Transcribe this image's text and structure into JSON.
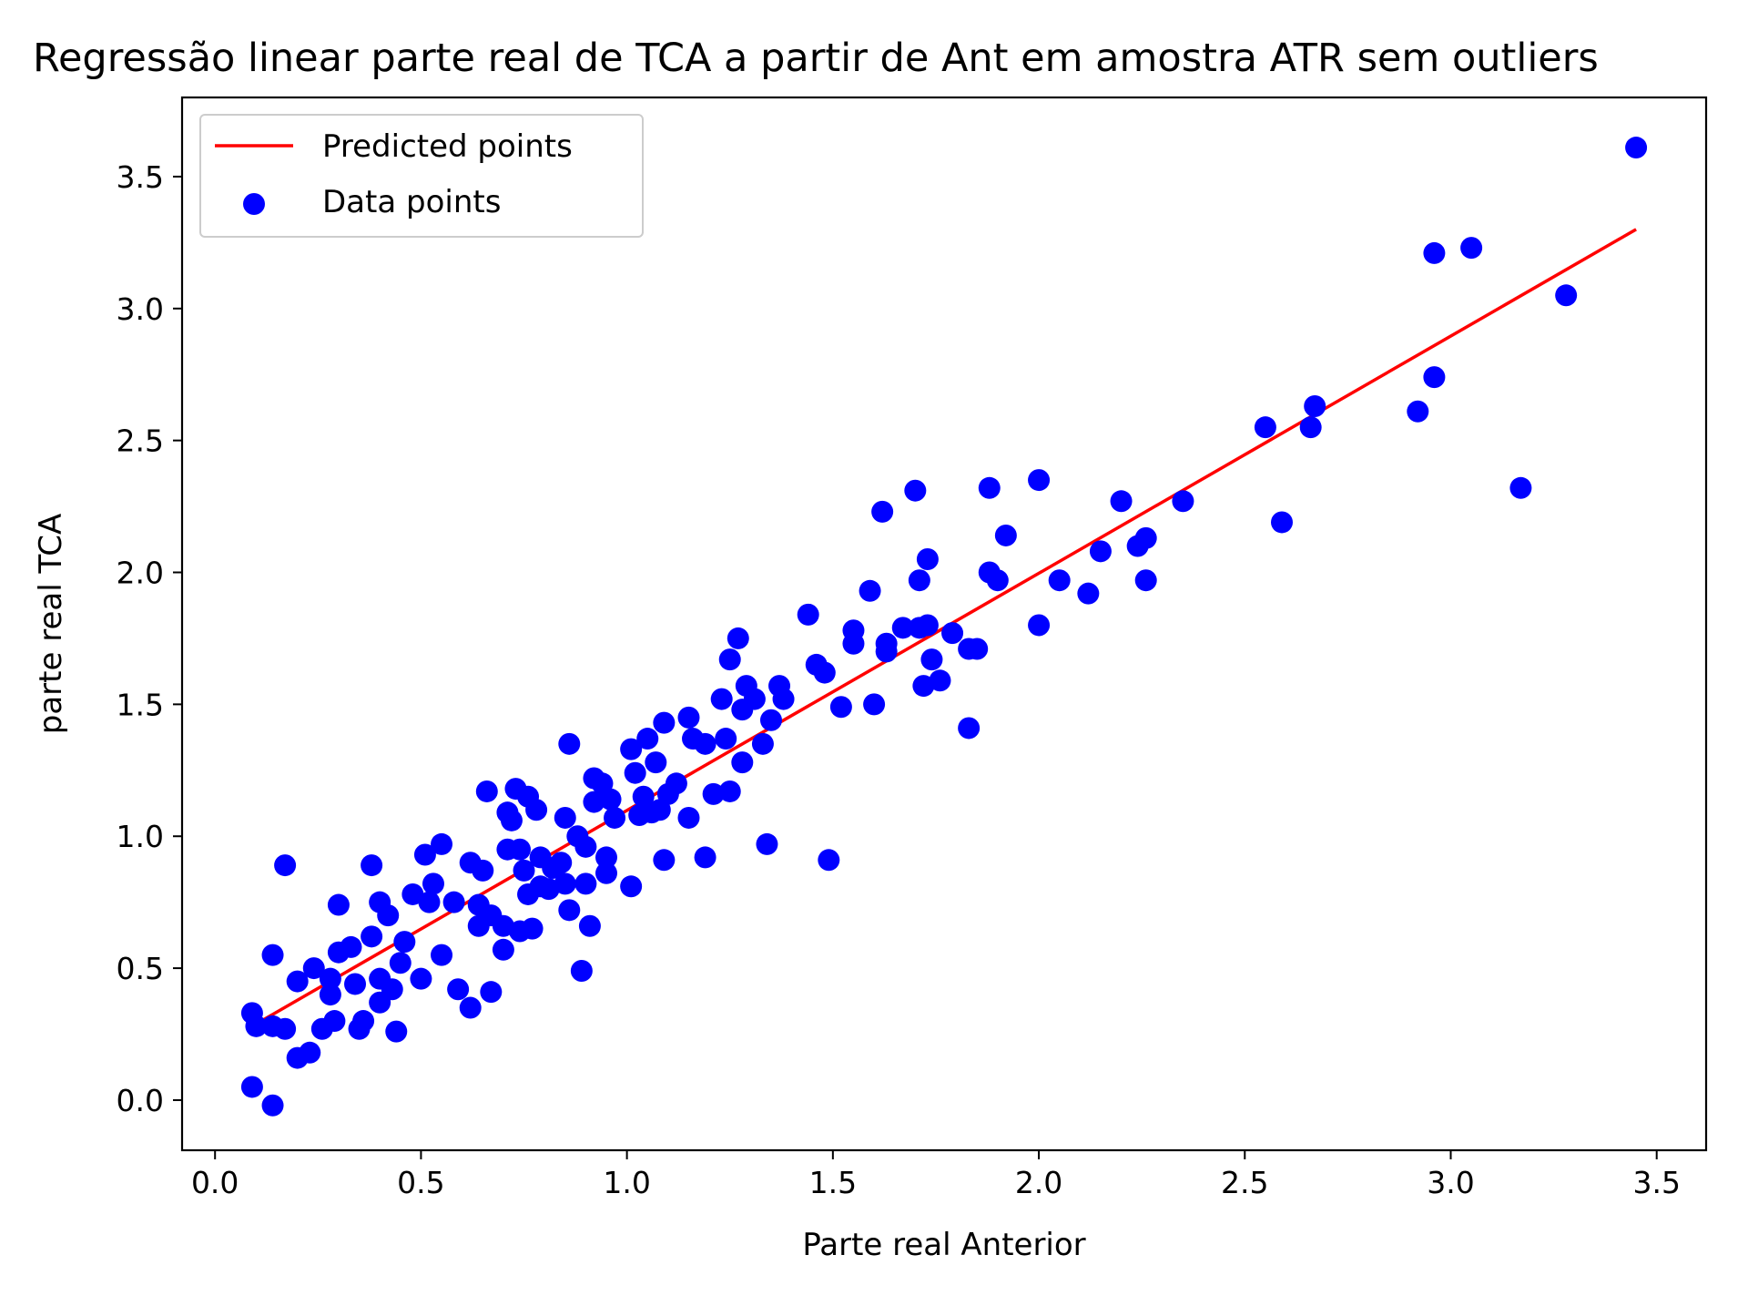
{
  "chart_data": {
    "type": "scatter",
    "title": "Regressão linear parte real de TCA a partir de Ant em amostra ATR sem outliers",
    "xlabel": "Parte real Anterior",
    "ylabel": "parte real TCA",
    "xlim": [
      -0.08,
      3.62
    ],
    "ylim": [
      -0.19,
      3.8
    ],
    "xticks": [
      0.0,
      0.5,
      1.0,
      1.5,
      2.0,
      2.5,
      3.0,
      3.5
    ],
    "xtick_labels": [
      "0.0",
      "0.5",
      "1.0",
      "1.5",
      "2.0",
      "2.5",
      "3.0",
      "3.5"
    ],
    "yticks": [
      0.0,
      0.5,
      1.0,
      1.5,
      2.0,
      2.5,
      3.0,
      3.5
    ],
    "ytick_labels": [
      "0.0",
      "0.5",
      "1.0",
      "1.5",
      "2.0",
      "2.5",
      "3.0",
      "3.5"
    ],
    "grid": false,
    "legend": {
      "position": "top-left",
      "entries": [
        "Predicted points",
        "Data points"
      ]
    },
    "series": [
      {
        "name": "Predicted points",
        "kind": "line",
        "color": "#ff0000",
        "x": [
          0.09,
          3.45
        ],
        "y": [
          0.28,
          3.3
        ]
      },
      {
        "name": "Data points",
        "kind": "scatter",
        "color": "#0000ff",
        "points": [
          [
            0.09,
            0.05
          ],
          [
            0.14,
            -0.02
          ],
          [
            0.09,
            0.33
          ],
          [
            0.1,
            0.28
          ],
          [
            0.14,
            0.28
          ],
          [
            0.17,
            0.27
          ],
          [
            0.14,
            0.55
          ],
          [
            0.17,
            0.89
          ],
          [
            0.2,
            0.16
          ],
          [
            0.23,
            0.18
          ],
          [
            0.2,
            0.45
          ],
          [
            0.24,
            0.5
          ],
          [
            0.26,
            0.27
          ],
          [
            0.28,
            0.46
          ],
          [
            0.28,
            0.4
          ],
          [
            0.29,
            0.3
          ],
          [
            0.3,
            0.56
          ],
          [
            0.3,
            0.74
          ],
          [
            0.33,
            0.58
          ],
          [
            0.34,
            0.44
          ],
          [
            0.35,
            0.27
          ],
          [
            0.36,
            0.3
          ],
          [
            0.38,
            0.62
          ],
          [
            0.38,
            0.89
          ],
          [
            0.4,
            0.46
          ],
          [
            0.4,
            0.37
          ],
          [
            0.4,
            0.75
          ],
          [
            0.42,
            0.7
          ],
          [
            0.43,
            0.42
          ],
          [
            0.44,
            0.26
          ],
          [
            0.45,
            0.52
          ],
          [
            0.46,
            0.6
          ],
          [
            0.48,
            0.78
          ],
          [
            0.5,
            0.46
          ],
          [
            0.51,
            0.93
          ],
          [
            0.52,
            0.75
          ],
          [
            0.53,
            0.82
          ],
          [
            0.55,
            0.97
          ],
          [
            0.55,
            0.55
          ],
          [
            0.58,
            0.75
          ],
          [
            0.59,
            0.42
          ],
          [
            0.62,
            0.35
          ],
          [
            0.62,
            0.9
          ],
          [
            0.64,
            0.66
          ],
          [
            0.64,
            0.74
          ],
          [
            0.65,
            0.87
          ],
          [
            0.66,
            1.17
          ],
          [
            0.67,
            0.41
          ],
          [
            0.67,
            0.7
          ],
          [
            0.7,
            0.66
          ],
          [
            0.7,
            0.57
          ],
          [
            0.71,
            0.95
          ],
          [
            0.71,
            1.09
          ],
          [
            0.72,
            1.06
          ],
          [
            0.73,
            1.18
          ],
          [
            0.74,
            0.95
          ],
          [
            0.74,
            0.64
          ],
          [
            0.75,
            0.87
          ],
          [
            0.76,
            1.15
          ],
          [
            0.76,
            0.78
          ],
          [
            0.77,
            0.65
          ],
          [
            0.78,
            1.1
          ],
          [
            0.79,
            0.81
          ],
          [
            0.79,
            0.92
          ],
          [
            0.81,
            0.8
          ],
          [
            0.82,
            0.88
          ],
          [
            0.84,
            0.9
          ],
          [
            0.85,
            0.82
          ],
          [
            0.85,
            1.07
          ],
          [
            0.86,
            0.72
          ],
          [
            0.86,
            1.35
          ],
          [
            0.88,
            1.0
          ],
          [
            0.89,
            0.49
          ],
          [
            0.9,
            0.96
          ],
          [
            0.9,
            0.82
          ],
          [
            0.91,
            0.66
          ],
          [
            0.92,
            1.13
          ],
          [
            0.92,
            1.22
          ],
          [
            0.94,
            1.2
          ],
          [
            0.95,
            0.92
          ],
          [
            0.95,
            0.86
          ],
          [
            0.96,
            1.14
          ],
          [
            0.97,
            1.07
          ],
          [
            1.01,
            1.33
          ],
          [
            1.01,
            0.81
          ],
          [
            1.02,
            1.24
          ],
          [
            1.03,
            1.08
          ],
          [
            1.04,
            1.15
          ],
          [
            1.05,
            1.37
          ],
          [
            1.06,
            1.09
          ],
          [
            1.07,
            1.28
          ],
          [
            1.08,
            1.1
          ],
          [
            1.09,
            1.43
          ],
          [
            1.09,
            0.91
          ],
          [
            1.1,
            1.16
          ],
          [
            1.12,
            1.2
          ],
          [
            1.15,
            1.07
          ],
          [
            1.15,
            1.45
          ],
          [
            1.16,
            1.37
          ],
          [
            1.19,
            1.35
          ],
          [
            1.19,
            0.92
          ],
          [
            1.21,
            1.16
          ],
          [
            1.23,
            1.52
          ],
          [
            1.24,
            1.37
          ],
          [
            1.25,
            1.17
          ],
          [
            1.25,
            1.67
          ],
          [
            1.27,
            1.75
          ],
          [
            1.28,
            1.28
          ],
          [
            1.28,
            1.48
          ],
          [
            1.29,
            1.57
          ],
          [
            1.31,
            1.52
          ],
          [
            1.33,
            1.35
          ],
          [
            1.34,
            0.97
          ],
          [
            1.35,
            1.44
          ],
          [
            1.37,
            1.57
          ],
          [
            1.38,
            1.52
          ],
          [
            1.44,
            1.84
          ],
          [
            1.46,
            1.65
          ],
          [
            1.48,
            1.62
          ],
          [
            1.49,
            0.91
          ],
          [
            1.52,
            1.49
          ],
          [
            1.55,
            1.78
          ],
          [
            1.55,
            1.73
          ],
          [
            1.59,
            1.93
          ],
          [
            1.6,
            1.5
          ],
          [
            1.62,
            2.23
          ],
          [
            1.63,
            1.7
          ],
          [
            1.63,
            1.73
          ],
          [
            1.67,
            1.79
          ],
          [
            1.7,
            2.31
          ],
          [
            1.71,
            1.97
          ],
          [
            1.71,
            1.79
          ],
          [
            1.72,
            1.57
          ],
          [
            1.73,
            2.05
          ],
          [
            1.73,
            1.8
          ],
          [
            1.74,
            1.67
          ],
          [
            1.76,
            1.59
          ],
          [
            1.79,
            1.77
          ],
          [
            1.83,
            1.41
          ],
          [
            1.83,
            1.71
          ],
          [
            1.85,
            1.71
          ],
          [
            1.88,
            2.32
          ],
          [
            1.88,
            2.0
          ],
          [
            1.9,
            1.97
          ],
          [
            1.92,
            2.14
          ],
          [
            2.0,
            2.35
          ],
          [
            2.0,
            1.8
          ],
          [
            2.05,
            1.97
          ],
          [
            2.12,
            1.92
          ],
          [
            2.15,
            2.08
          ],
          [
            2.2,
            2.27
          ],
          [
            2.24,
            2.1
          ],
          [
            2.26,
            2.13
          ],
          [
            2.26,
            1.97
          ],
          [
            2.35,
            2.27
          ],
          [
            2.55,
            2.55
          ],
          [
            2.59,
            2.19
          ],
          [
            2.66,
            2.55
          ],
          [
            2.67,
            2.63
          ],
          [
            2.92,
            2.61
          ],
          [
            2.96,
            3.21
          ],
          [
            2.96,
            2.74
          ],
          [
            3.05,
            3.23
          ],
          [
            3.17,
            2.32
          ],
          [
            3.28,
            3.05
          ],
          [
            3.45,
            3.61
          ]
        ]
      }
    ]
  }
}
